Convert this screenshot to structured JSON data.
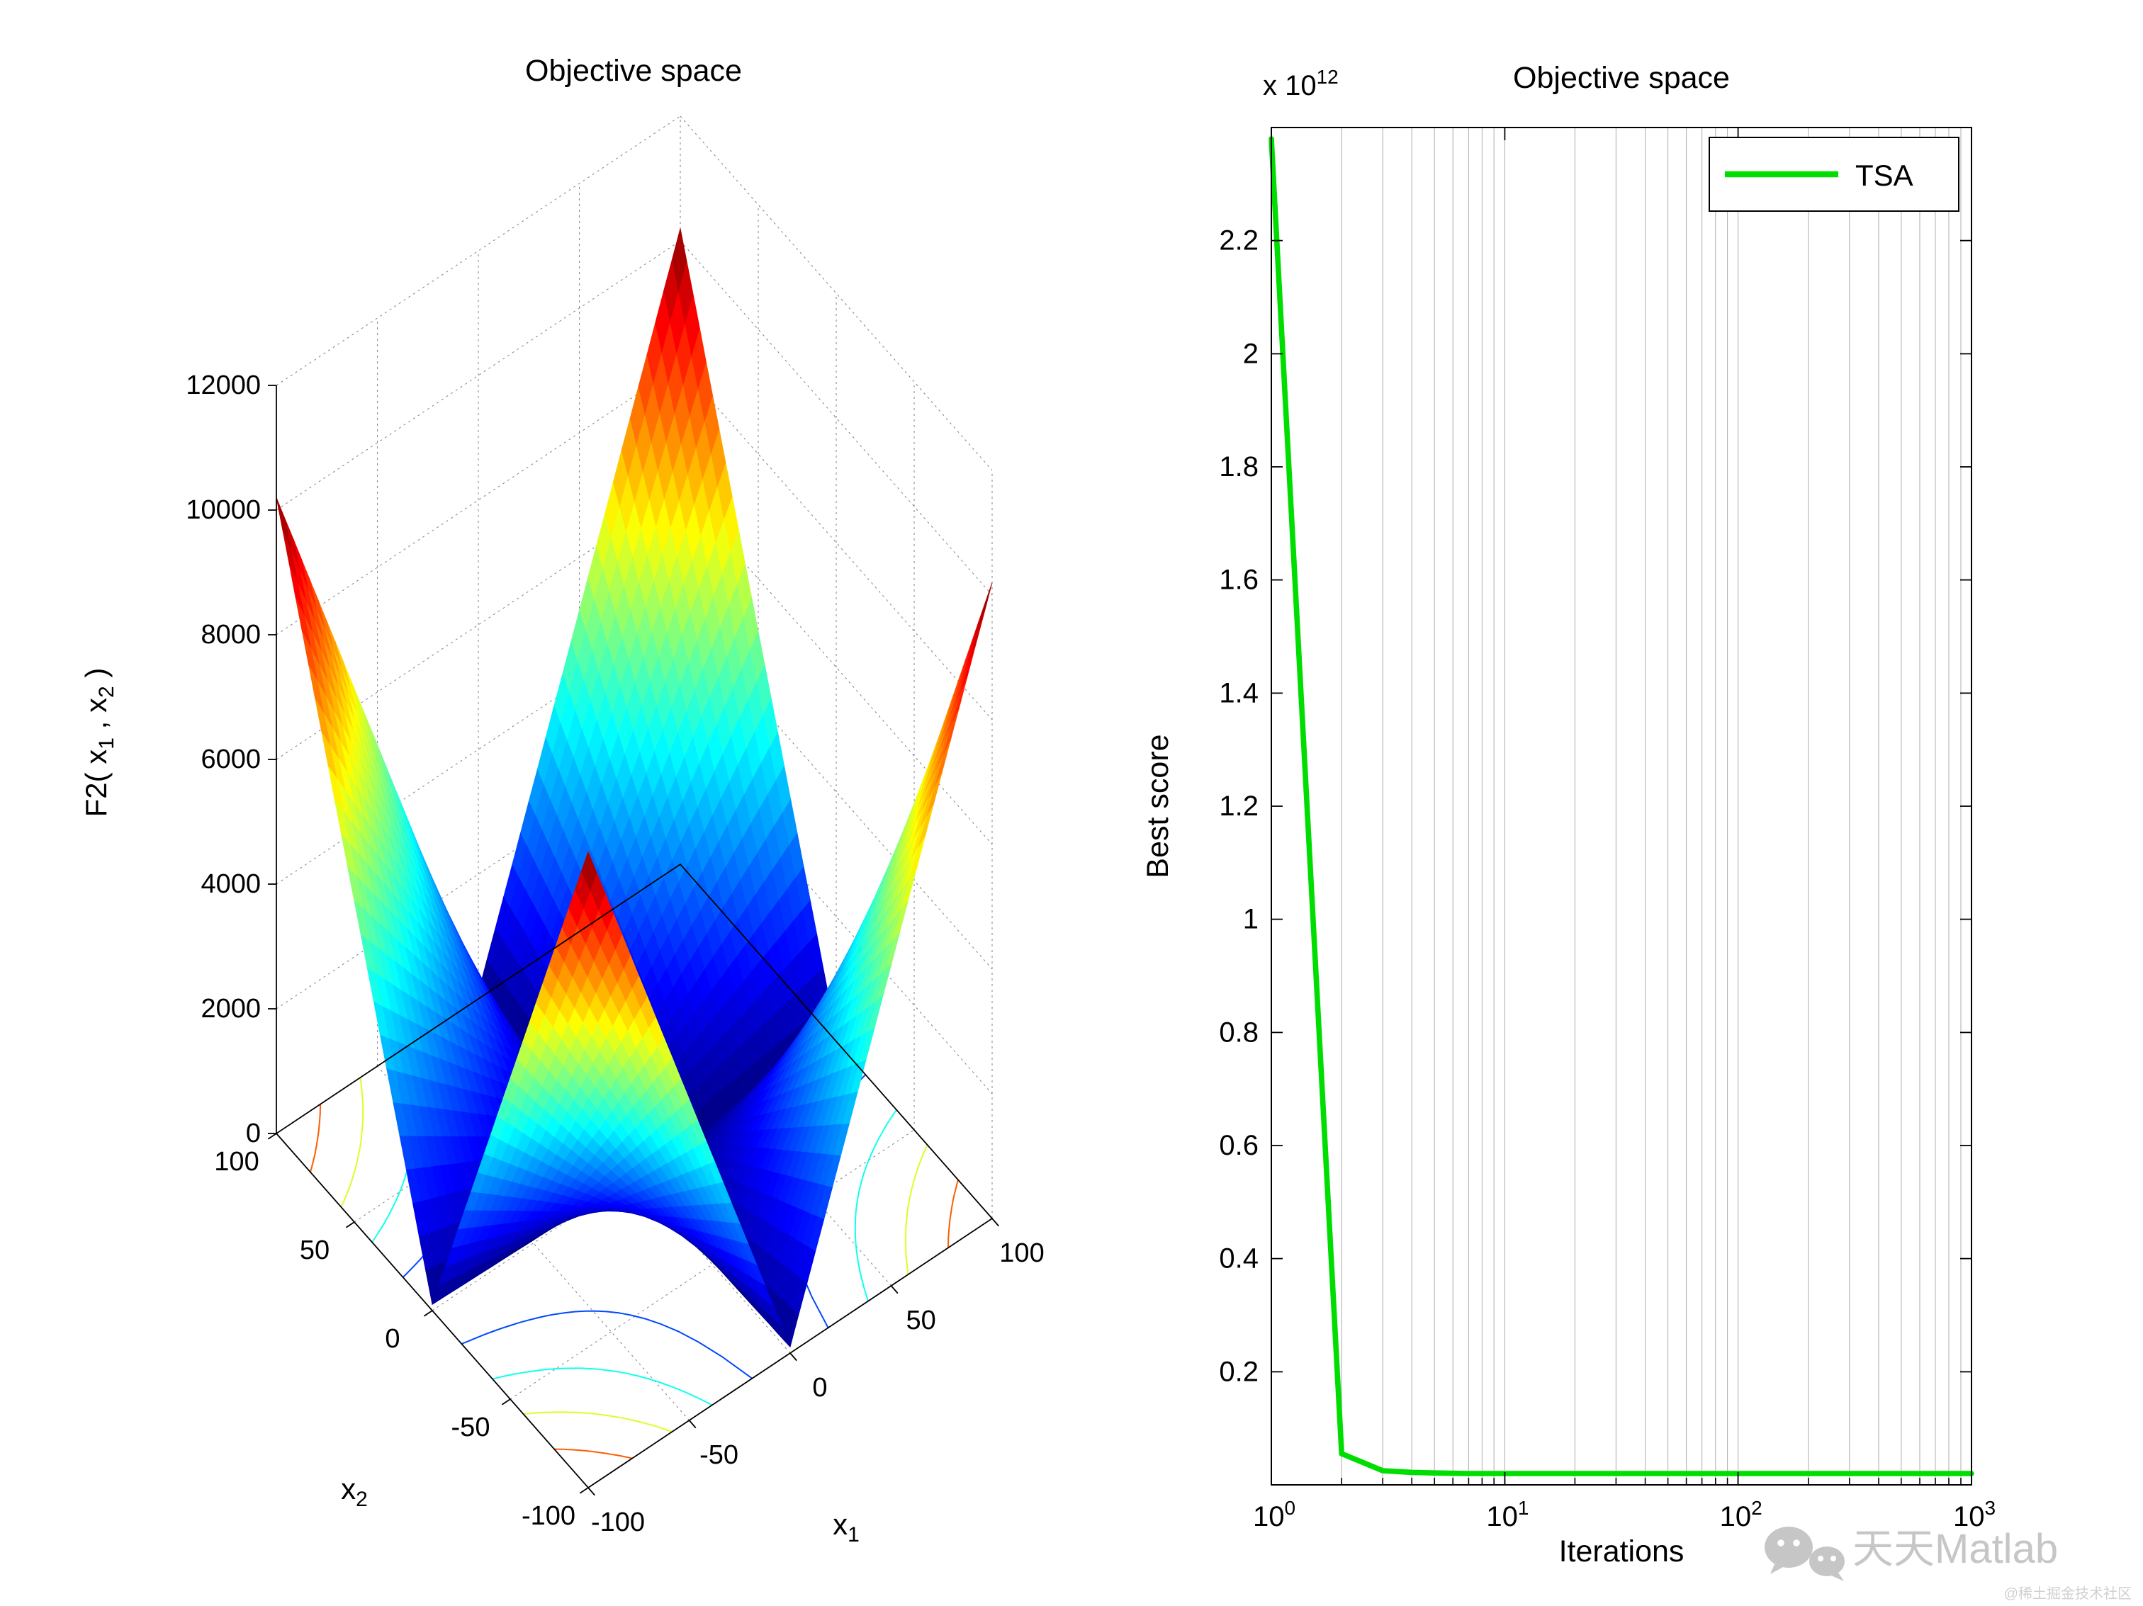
{
  "figure": {
    "background": "#ffffff"
  },
  "chart_data": [
    {
      "type": "surface",
      "title": "Objective space",
      "xlabel": {
        "base": "x",
        "sub": "1"
      },
      "ylabel": {
        "base": "x",
        "sub": "2"
      },
      "zlabel": {
        "p1": "F2( x",
        "s1": "1",
        "p2": " , x",
        "s2": "2",
        "p3": " )"
      },
      "formula": "f(x1,x2) = |x1| + |x2| + |x1*x2|",
      "x_range": [
        -100,
        100
      ],
      "y_range": [
        -100,
        100
      ],
      "z_range": [
        0,
        12000
      ],
      "x_ticks": [
        -100,
        -50,
        0,
        50,
        100
      ],
      "y_ticks": [
        -100,
        -50,
        0,
        50,
        100
      ],
      "z_ticks": [
        0,
        2000,
        4000,
        6000,
        8000,
        10000,
        12000
      ],
      "colormap": "jet",
      "z_max_value": 10200,
      "contour_levels": [
        2000,
        4000,
        6000,
        8000
      ],
      "grid": true
    },
    {
      "type": "line",
      "title": "Objective space",
      "xlabel": "Iterations",
      "ylabel": "Best score",
      "x_scale": "log10",
      "x_range": [
        1,
        1000
      ],
      "x_ticks": [
        1,
        10,
        100,
        1000
      ],
      "y_exponent": {
        "base": "x 10",
        "sup": "12"
      },
      "y_range": [
        0,
        2.4
      ],
      "y_ticks": [
        0.2,
        0.4,
        0.6,
        0.8,
        1,
        1.2,
        1.4,
        1.6,
        1.8,
        2,
        2.2
      ],
      "grid_x_minor": true,
      "legend": {
        "position": "top-right"
      },
      "series": [
        {
          "name": "TSA",
          "color": "#00dd00",
          "x": [
            1,
            2,
            3,
            4,
            5,
            7,
            10,
            20,
            50,
            100,
            200,
            500,
            1000
          ],
          "y_in_1e12": [
            2.38,
            0.055,
            0.025,
            0.022,
            0.021,
            0.02,
            0.02,
            0.02,
            0.02,
            0.02,
            0.02,
            0.02,
            0.02
          ]
        }
      ]
    }
  ],
  "watermark": {
    "brand": "天天Matlab",
    "community": "@稀土掘金技术社区"
  }
}
